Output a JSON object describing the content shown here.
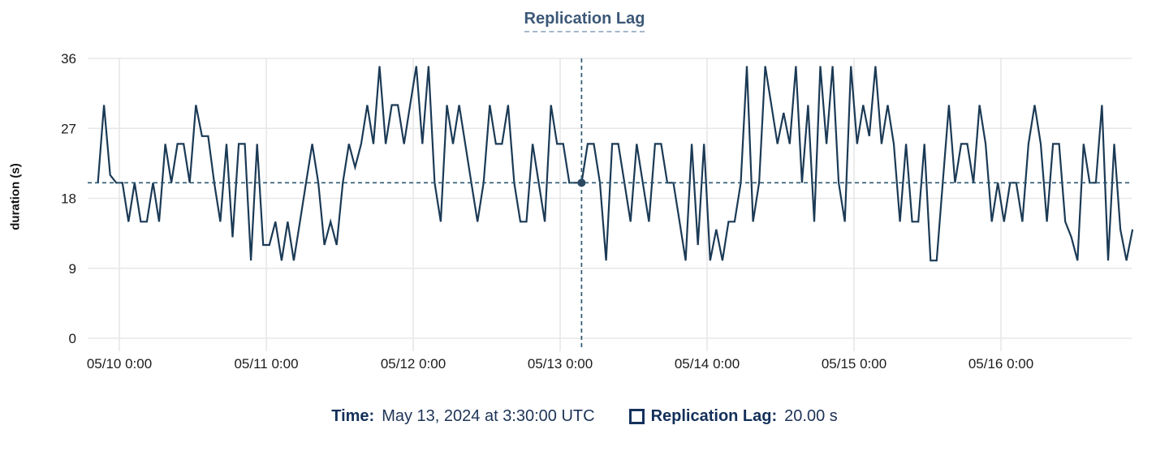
{
  "title": {
    "text": "Replication Lag"
  },
  "tooltip": {
    "time_label": "Time:",
    "time_value": "May 13, 2024 at 3:30:00 UTC",
    "series_label": "Replication Lag:",
    "series_value": "20.00 s"
  },
  "colors": {
    "line": "#1b3a55",
    "crosshair": "#2d5a73",
    "dot": "#2a4961",
    "grid": "#e7e7e7",
    "axis_text": "#1c1c1c",
    "title_text": "#3c5877",
    "legend_text": "#16325c"
  },
  "chart_data": {
    "type": "line",
    "title": "Replication Lag",
    "xlabel": "",
    "ylabel": "duration (s)",
    "ylim": [
      0,
      36
    ],
    "yticks": [
      0,
      9,
      18,
      27,
      36
    ],
    "xticks": [
      {
        "label": "05/10 0:00",
        "hour_offset": 3.5
      },
      {
        "label": "05/11 0:00",
        "hour_offset": 27.5
      },
      {
        "label": "05/12 0:00",
        "hour_offset": 51.5
      },
      {
        "label": "05/13 0:00",
        "hour_offset": 75.5
      },
      {
        "label": "05/14 0:00",
        "hour_offset": 99.5
      },
      {
        "label": "05/15 0:00",
        "hour_offset": 123.5
      },
      {
        "label": "05/16 0:00",
        "hour_offset": 147.5
      }
    ],
    "grid": true,
    "legend_position": "bottom",
    "series": [
      {
        "name": "Replication Lag",
        "unit": "s",
        "start_time": "2024-05-09 20:30 UTC",
        "interval_hours": 1,
        "values": [
          20,
          30,
          21,
          20,
          20,
          15,
          20,
          15,
          15,
          20,
          15,
          25,
          20,
          25,
          25,
          20,
          30,
          26,
          26,
          20,
          15,
          25,
          13,
          25,
          25,
          10,
          25,
          12,
          12,
          15,
          10,
          15,
          10,
          15,
          20,
          25,
          20,
          12,
          15,
          12,
          20,
          25,
          22,
          25,
          30,
          25,
          35,
          25,
          30,
          30,
          25,
          30,
          35,
          25,
          35,
          20,
          15,
          30,
          25,
          30,
          25,
          20,
          15,
          20,
          30,
          25,
          25,
          30,
          20,
          15,
          15,
          25,
          20,
          15,
          30,
          25,
          25,
          20,
          20,
          20,
          25,
          25,
          20,
          10,
          25,
          25,
          20,
          15,
          25,
          20,
          15,
          25,
          25,
          20,
          20,
          15,
          10,
          25,
          12,
          25,
          10,
          14,
          10,
          15,
          15,
          20,
          35,
          15,
          20,
          35,
          30,
          25,
          29,
          25,
          35,
          20,
          30,
          15,
          35,
          25,
          35,
          20,
          15,
          35,
          25,
          30,
          26,
          35,
          25,
          30,
          25,
          15,
          25,
          15,
          15,
          25,
          10,
          10,
          20,
          30,
          20,
          25,
          25,
          20,
          30,
          25,
          15,
          20,
          15,
          20,
          20,
          15,
          25,
          30,
          25,
          15,
          25,
          25,
          15,
          13,
          10,
          25,
          20,
          20,
          30,
          10,
          25,
          14,
          10,
          14
        ]
      }
    ],
    "annotations": {
      "crosshair_point_index": 79,
      "crosshair_time": "May 13, 2024 at 3:30:00 UTC",
      "crosshair_value_s": 20.0
    }
  }
}
